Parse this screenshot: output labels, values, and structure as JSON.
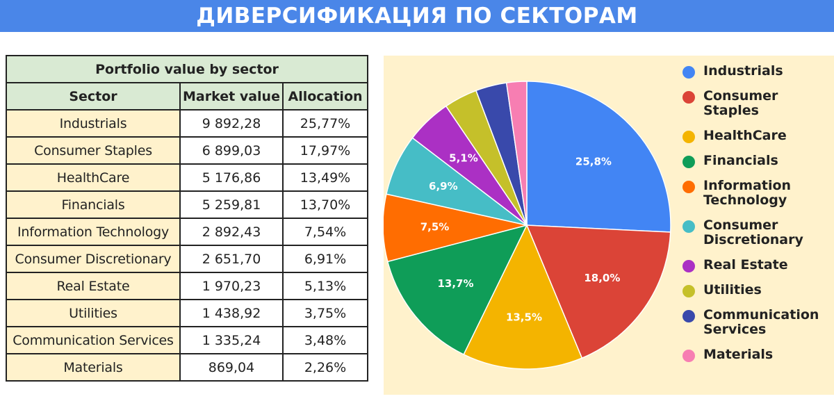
{
  "page": {
    "title": "ДИВЕРСИФИКАЦИЯ ПО СЕКТОРАМ"
  },
  "table": {
    "caption": "Portfolio value by sector",
    "headers": [
      "Sector",
      "Market value",
      "Allocation"
    ],
    "rows": [
      [
        "Industrials",
        "9 892,28",
        "25,77%"
      ],
      [
        "Consumer Staples",
        "6 899,03",
        "17,97%"
      ],
      [
        "HealthCare",
        "5 176,86",
        "13,49%"
      ],
      [
        "Financials",
        "5 259,81",
        "13,70%"
      ],
      [
        "Information Technology",
        "2 892,43",
        "7,54%"
      ],
      [
        "Consumer Discretionary",
        "2 651,70",
        "6,91%"
      ],
      [
        "Real Estate",
        "1 970,23",
        "5,13%"
      ],
      [
        "Utilities",
        "1 438,92",
        "3,75%"
      ],
      [
        "Communication Services",
        "1 335,24",
        "3,48%"
      ],
      [
        "Materials",
        "869,04",
        "2,26%"
      ]
    ]
  },
  "chart_data": {
    "type": "pie",
    "title": "",
    "legend_position": "right",
    "categories": [
      "Industrials",
      "Consumer Staples",
      "HealthCare",
      "Financials",
      "Information Technology",
      "Consumer Discretionary",
      "Real Estate",
      "Utilities",
      "Communication Services",
      "Materials"
    ],
    "values": [
      25.77,
      17.97,
      13.49,
      13.7,
      7.54,
      6.91,
      5.13,
      3.75,
      3.48,
      2.26
    ],
    "slice_labels": [
      "25,8%",
      "18,0%",
      "13,5%",
      "13,7%",
      "7,5%",
      "6,9%",
      "5,1%",
      "",
      "",
      ""
    ],
    "legend_labels": [
      [
        "Industrials"
      ],
      [
        "Consumer",
        "Staples"
      ],
      [
        "HealthCare"
      ],
      [
        "Financials"
      ],
      [
        "Information",
        "Technology"
      ],
      [
        "Consumer",
        "Discretionary"
      ],
      [
        "Real Estate"
      ],
      [
        "Utilities"
      ],
      [
        "Communication",
        "Services"
      ],
      [
        "Materials"
      ]
    ],
    "colors": [
      "#4285f4",
      "#db4437",
      "#f4b400",
      "#0f9d58",
      "#ff6d01",
      "#46bdc6",
      "#ab30c4",
      "#c5c02a",
      "#3949ab",
      "#f77eb2"
    ]
  }
}
